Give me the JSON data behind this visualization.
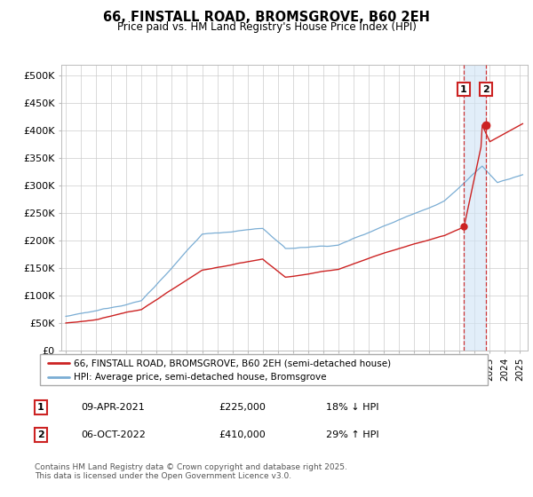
{
  "title": "66, FINSTALL ROAD, BROMSGROVE, B60 2EH",
  "subtitle": "Price paid vs. HM Land Registry's House Price Index (HPI)",
  "ylim": [
    0,
    520000
  ],
  "yticks": [
    0,
    50000,
    100000,
    150000,
    200000,
    250000,
    300000,
    350000,
    400000,
    450000,
    500000
  ],
  "ytick_labels": [
    "£0",
    "£50K",
    "£100K",
    "£150K",
    "£200K",
    "£250K",
    "£300K",
    "£350K",
    "£400K",
    "£450K",
    "£500K"
  ],
  "xlim_start": 1994.7,
  "xlim_end": 2025.5,
  "hpi_color": "#7aadd4",
  "price_color": "#cc2222",
  "marker1_date": 2021.27,
  "marker1_price": 225000,
  "marker2_date": 2022.75,
  "marker2_price": 410000,
  "legend_label1": "66, FINSTALL ROAD, BROMSGROVE, B60 2EH (semi-detached house)",
  "legend_label2": "HPI: Average price, semi-detached house, Bromsgrove",
  "table_row1": [
    "1",
    "09-APR-2021",
    "£225,000",
    "18% ↓ HPI"
  ],
  "table_row2": [
    "2",
    "06-OCT-2022",
    "£410,000",
    "29% ↑ HPI"
  ],
  "footnote": "Contains HM Land Registry data © Crown copyright and database right 2025.\nThis data is licensed under the Open Government Licence v3.0.",
  "grid_color": "#cccccc",
  "shade_color": "#d0e4f5"
}
